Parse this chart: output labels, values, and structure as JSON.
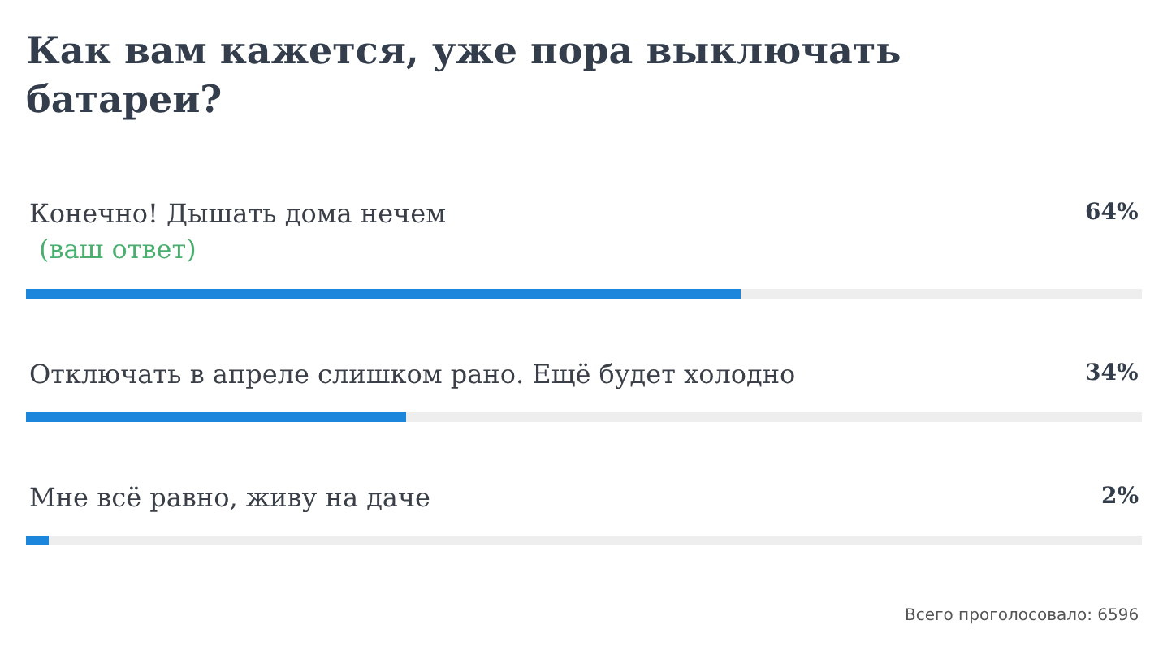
{
  "chart_data": {
    "type": "bar",
    "orientation": "horizontal",
    "title": "Как вам кажется, уже пора выключать батареи?",
    "categories": [
      "Конечно! Дышать дома нечем",
      "Отключать в апреле слишком рано. Ещё будет холодно",
      "Мне всё равно, живу на даче"
    ],
    "values": [
      64,
      34,
      2
    ],
    "value_labels": [
      "64%",
      "34%",
      "2%"
    ],
    "color": "#1b86dc",
    "xlim": [
      0,
      100
    ],
    "tick_labels": "y",
    "annotations": [
      "(ваш ответ)",
      "Всего проголосовало: 6596"
    ]
  }
}
